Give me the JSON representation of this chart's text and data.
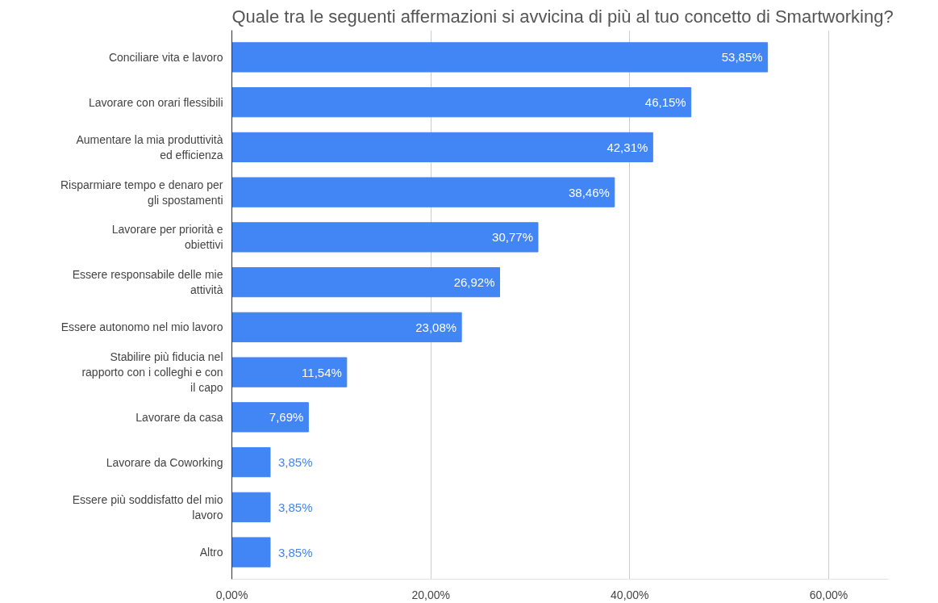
{
  "chart_data": {
    "type": "bar",
    "orientation": "horizontal",
    "title": "Quale tra le seguenti affermazioni si avvicina di più al tuo concetto di Smartworking?",
    "categories": [
      "Conciliare vita e lavoro",
      "Lavorare con orari flessibili",
      "Aumentare la mia produttività ed efficienza",
      "Risparmiare tempo e denaro per gli spostamenti",
      "Lavorare per priorità e obiettivi",
      "Essere responsabile delle mie attività",
      "Essere autonomo nel mio lavoro",
      "Stabilire più fiducia nel rapporto con i colleghi e con il capo",
      "Lavorare da casa",
      "Lavorare da Coworking",
      "Essere più soddisfatto del mio lavoro",
      "Altro"
    ],
    "values": [
      53.85,
      46.15,
      42.31,
      38.46,
      30.77,
      26.92,
      23.08,
      11.54,
      7.69,
      3.85,
      3.85,
      3.85
    ],
    "value_labels": [
      "53,85%",
      "46,15%",
      "42,31%",
      "38,46%",
      "30,77%",
      "26,92%",
      "23,08%",
      "11,54%",
      "7,69%",
      "3,85%",
      "3,85%",
      "3,85%"
    ],
    "color": "#4285f4",
    "xlim": [
      0,
      66
    ],
    "xticks": [
      {
        "value": 0,
        "label": "0,00%"
      },
      {
        "value": 20,
        "label": "20,00%"
      },
      {
        "value": 40,
        "label": "40,00%"
      },
      {
        "value": 60,
        "label": "60,00%"
      }
    ],
    "grid": "x"
  }
}
